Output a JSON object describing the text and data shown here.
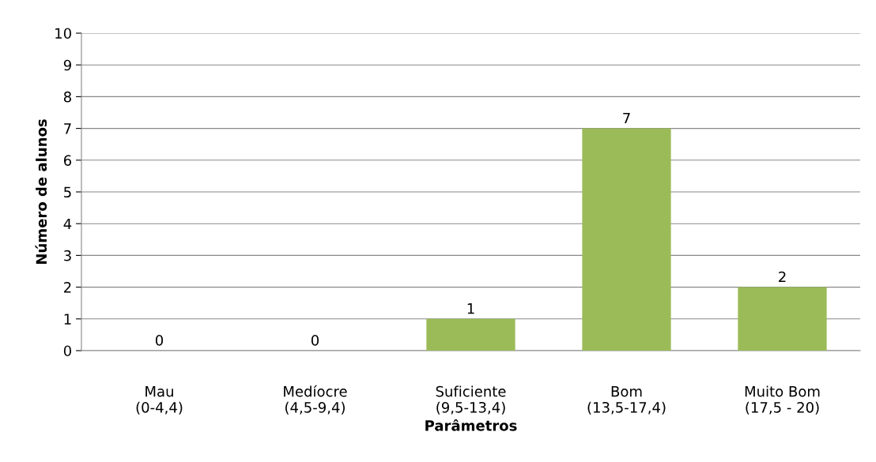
{
  "chart_data": {
    "type": "bar",
    "xlabel": "Parâmetros",
    "ylabel": "Número de alunos",
    "categories": [
      "Mau\n(0-4,4)",
      "Medíocre\n(4,5-9,4)",
      "Suficiente\n(9,5-13,4)",
      "Bom\n(13,5-17,4)",
      "Muito Bom\n(17,5 - 20)"
    ],
    "values": [
      0,
      0,
      1,
      7,
      2
    ],
    "color": "#9bbb59",
    "ylim": [
      0,
      10
    ],
    "yticks": [
      0,
      1,
      2,
      3,
      4,
      5,
      6,
      7,
      8,
      9,
      10
    ],
    "grid": "y",
    "data_labels": true,
    "legend": false
  }
}
